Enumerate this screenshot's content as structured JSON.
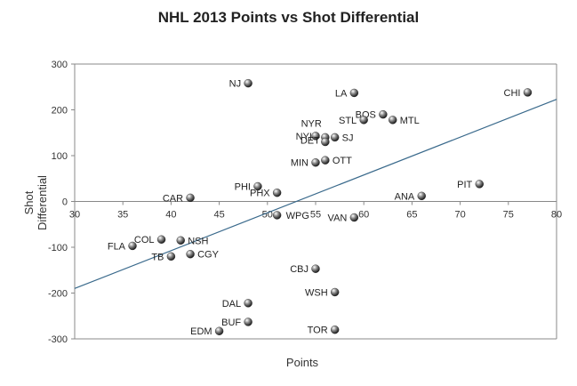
{
  "chart_data": {
    "type": "scatter",
    "title": "NHL 2013 Points vs Shot Differential",
    "xlabel": "Points",
    "ylabel": "Shot Differential",
    "xlim": [
      30,
      80
    ],
    "ylim": [
      -300,
      300
    ],
    "xticks": [
      30,
      35,
      40,
      45,
      50,
      55,
      60,
      65,
      70,
      75,
      80
    ],
    "yticks": [
      -300,
      -200,
      -100,
      0,
      100,
      200,
      300
    ],
    "grid": false,
    "legend": "none",
    "colors": {
      "point": "#333333",
      "trendline": "#3a6a8c",
      "axis": "#888888"
    },
    "trendline": {
      "x": [
        30,
        80
      ],
      "y": [
        -190,
        223
      ]
    },
    "points": [
      {
        "label": "NJ",
        "x": 48,
        "y": 258
      },
      {
        "label": "LA",
        "x": 59,
        "y": 237
      },
      {
        "label": "CHI",
        "x": 77,
        "y": 238
      },
      {
        "label": "BOS",
        "x": 62,
        "y": 190
      },
      {
        "label": "STL",
        "x": 60,
        "y": 178
      },
      {
        "label": "MTL",
        "x": 63,
        "y": 178
      },
      {
        "label": "NYR",
        "x": 56,
        "y": 140
      },
      {
        "label": "NYI",
        "x": 55,
        "y": 143
      },
      {
        "label": "SJ",
        "x": 57,
        "y": 140
      },
      {
        "label": "DET",
        "x": 56,
        "y": 130
      },
      {
        "label": "MIN",
        "x": 55,
        "y": 85
      },
      {
        "label": "OTT",
        "x": 56,
        "y": 90
      },
      {
        "label": "PIT",
        "x": 72,
        "y": 38
      },
      {
        "label": "ANA",
        "x": 66,
        "y": 12
      },
      {
        "label": "PHI",
        "x": 49,
        "y": 33
      },
      {
        "label": "PHX",
        "x": 51,
        "y": 19
      },
      {
        "label": "CAR",
        "x": 42,
        "y": 8
      },
      {
        "label": "WPG",
        "x": 51,
        "y": -30
      },
      {
        "label": "VAN",
        "x": 59,
        "y": -35
      },
      {
        "label": "COL",
        "x": 39,
        "y": -83
      },
      {
        "label": "NSH",
        "x": 41,
        "y": -85
      },
      {
        "label": "FLA",
        "x": 36,
        "y": -97
      },
      {
        "label": "CGY",
        "x": 42,
        "y": -115
      },
      {
        "label": "TB",
        "x": 40,
        "y": -120
      },
      {
        "label": "CBJ",
        "x": 55,
        "y": -147
      },
      {
        "label": "WSH",
        "x": 57,
        "y": -198
      },
      {
        "label": "DAL",
        "x": 48,
        "y": -222
      },
      {
        "label": "BUF",
        "x": 48,
        "y": -263
      },
      {
        "label": "EDM",
        "x": 45,
        "y": -283
      },
      {
        "label": "TOR",
        "x": 57,
        "y": -280
      }
    ]
  }
}
